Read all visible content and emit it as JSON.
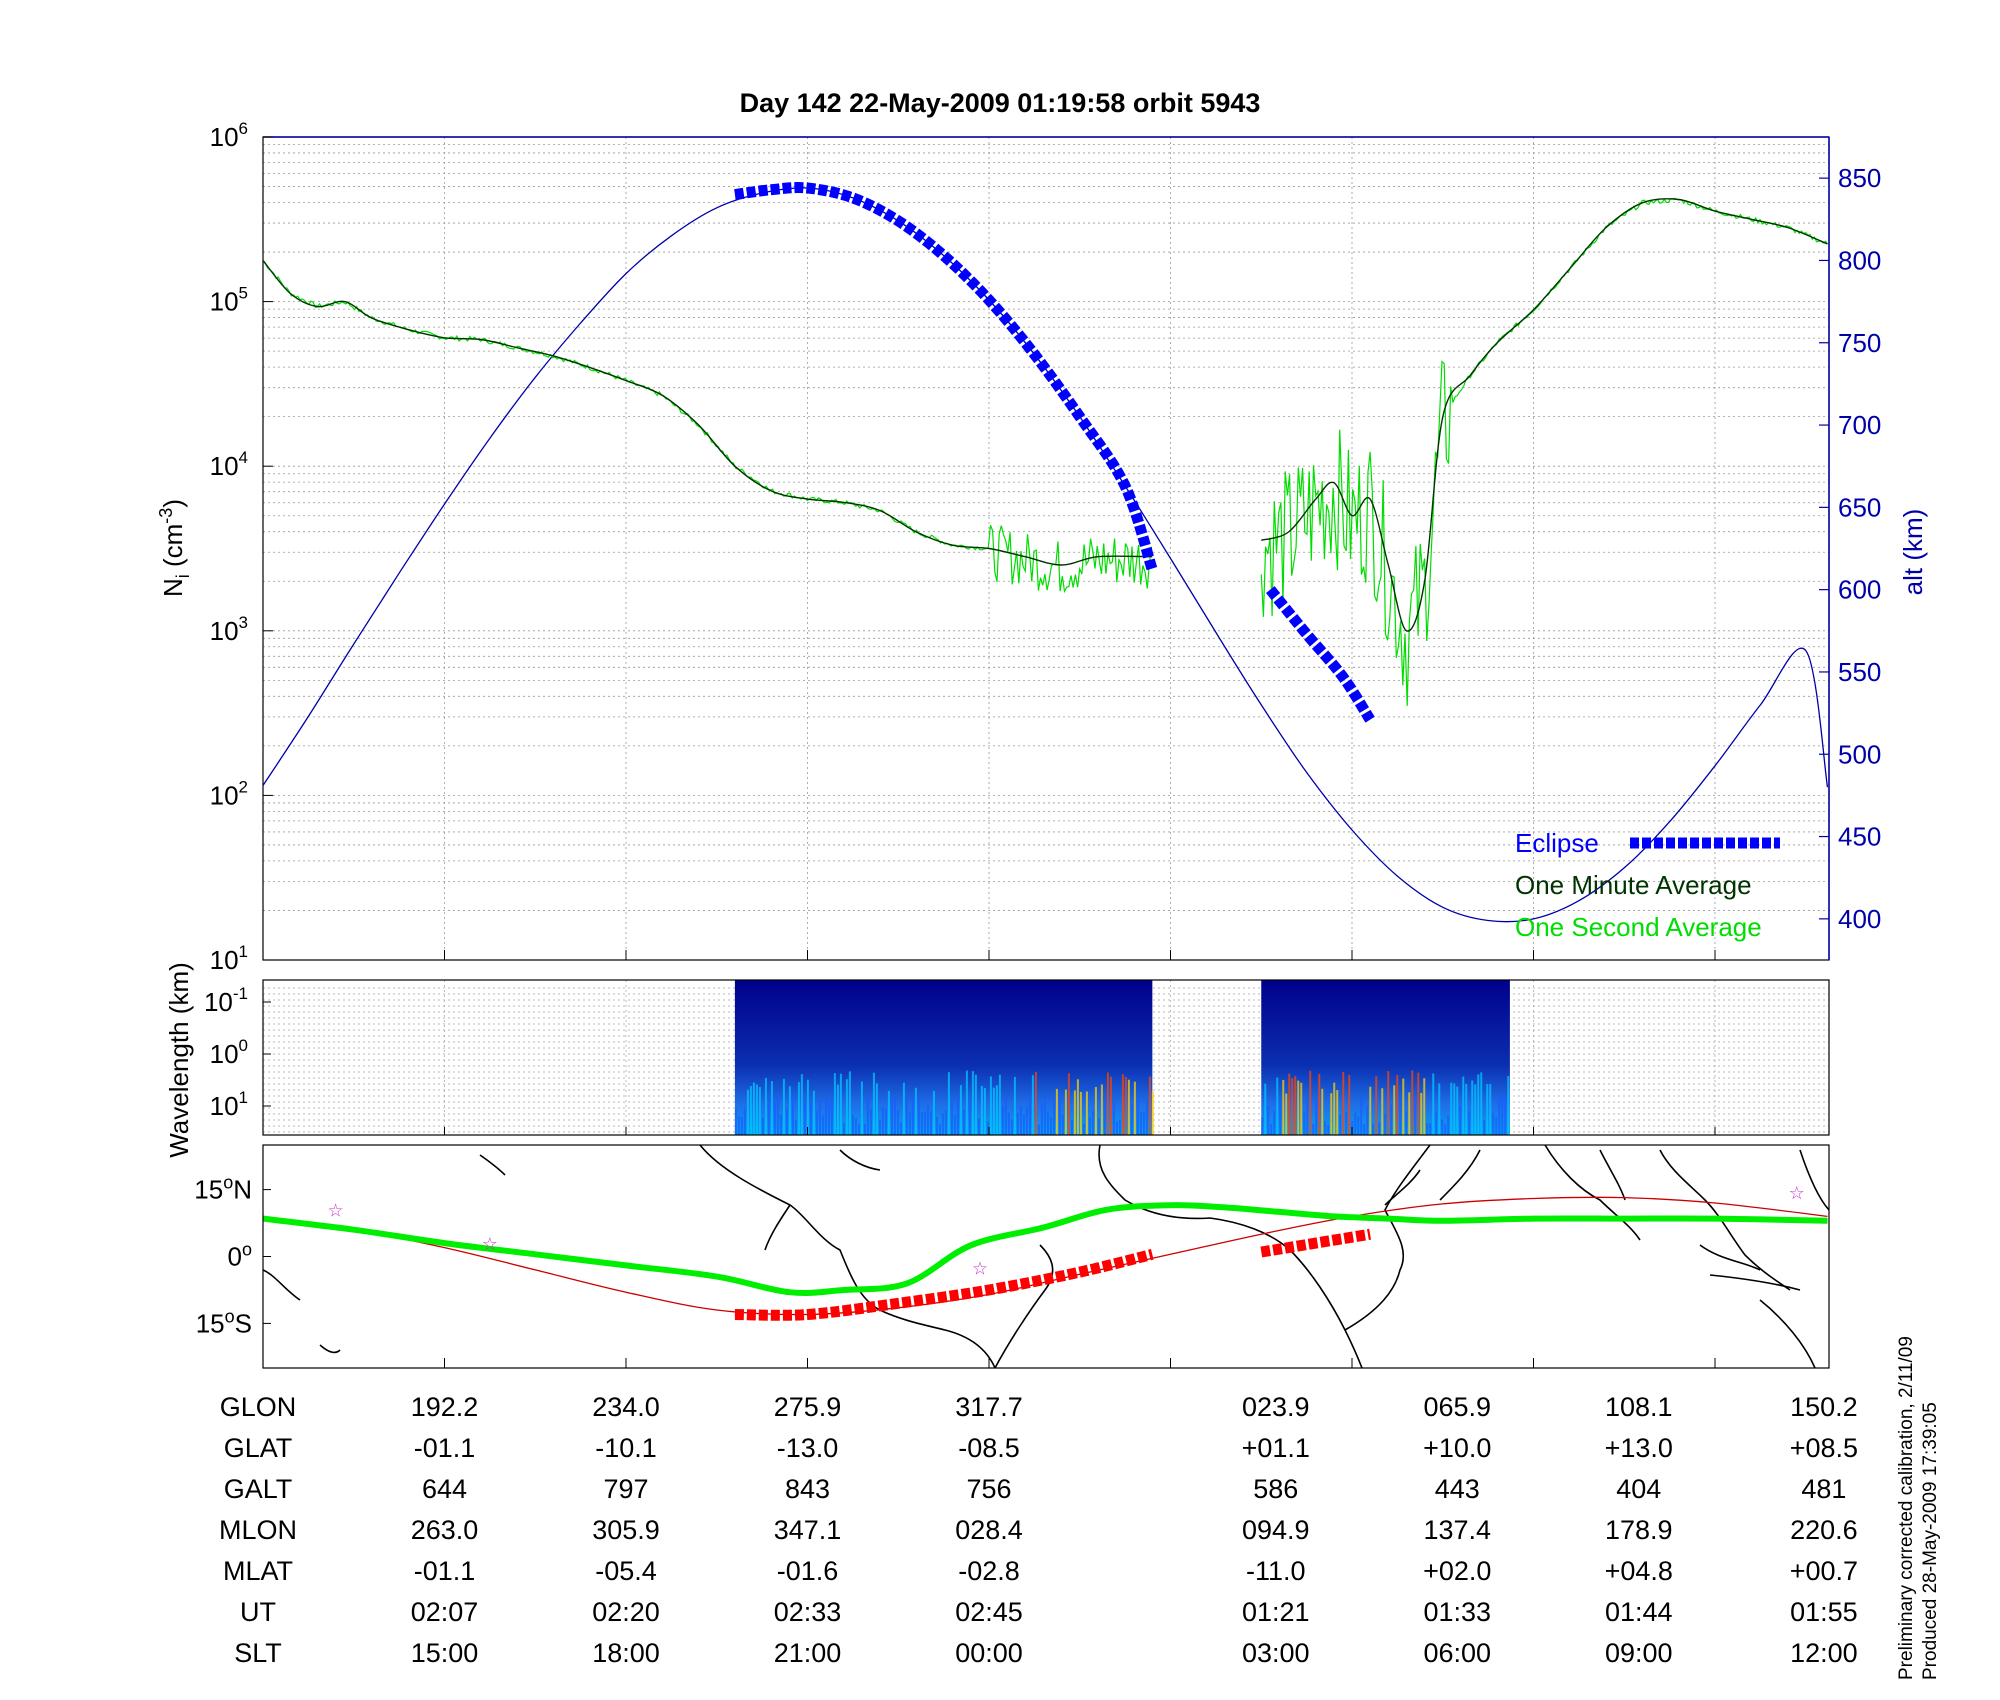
{
  "figure": {
    "title": "Day 142  22-May-2009 01:19:58   orbit 5943",
    "side_note_1": "Preliminary corrected calibration, 2/11/09",
    "side_note_2": "Produced 28-May-2009 17:39:05",
    "colors": {
      "altitude": "#0000aa",
      "eclipse": "#0000ff",
      "minute_average": "#003300",
      "second_average": "#00dd00",
      "track": "#00ee00",
      "track_eclipse": "#ff0000",
      "track_reference": "#cc0000",
      "stars": "#cc33cc",
      "spectrogram_background": "#00008b"
    }
  },
  "chart_data": [
    {
      "type": "line",
      "panel": "ion density and altitude",
      "ylabel_left": {
        "base": "N",
        "sub": "i",
        "unit_open": " (cm",
        "unit_sup": "-3",
        "unit_close": ")"
      },
      "ylabel_right": "alt (km)",
      "ylim_left_log10": [
        1,
        6
      ],
      "yticks_left": [
        {
          "base": "10",
          "exp": "1"
        },
        {
          "base": "10",
          "exp": "2"
        },
        {
          "base": "10",
          "exp": "3"
        },
        {
          "base": "10",
          "exp": "4"
        },
        {
          "base": "10",
          "exp": "5"
        },
        {
          "base": "10",
          "exp": "6"
        }
      ],
      "ylim_right": [
        375,
        875
      ],
      "yticks_right": [
        "400",
        "450",
        "500",
        "550",
        "600",
        "650",
        "700",
        "750",
        "800",
        "850"
      ],
      "grid": true,
      "x_scale": "orbit track (8 labeled columns, values in table below)",
      "legend_position": "bottom-right",
      "legend": [
        {
          "label": "Eclipse",
          "color_key": "eclipse"
        },
        {
          "label": "One Minute Average",
          "color_key": "minute_average"
        },
        {
          "label": "One Second Average",
          "color_key": "second_average"
        }
      ],
      "series": [
        {
          "name": "alt (km)",
          "axis": "right",
          "x": [
            0,
            0.25,
            0.5,
            0.75,
            1.0,
            1.25,
            1.5,
            1.75,
            2.0,
            2.25,
            2.5,
            2.75,
            3.0,
            3.25,
            3.5,
            3.75,
            4.0,
            4.25,
            4.5,
            4.75,
            5.0,
            5.25,
            5.5,
            5.75,
            6.0,
            6.25,
            6.5,
            6.75,
            7.0,
            7.25,
            7.5,
            7.75,
            8.0,
            8.25,
            8.5,
            8.62
          ],
          "y": [
            481,
            523,
            567,
            610,
            652,
            692,
            729,
            762,
            792,
            815,
            832,
            841,
            844,
            838,
            824,
            803,
            776,
            743,
            705,
            663,
            619,
            574,
            530,
            489,
            454,
            426,
            407,
            399,
            400,
            411,
            431,
            459,
            493,
            530,
            563,
            481
          ]
        },
        {
          "name": "Eclipse",
          "axis": "right",
          "segments": [
            {
              "x": [
                2.6,
                2.8,
                3.0,
                3.25,
                3.5,
                3.75,
                4.0,
                4.25,
                4.5,
                4.75,
                4.9
              ],
              "y": [
                840,
                843,
                844,
                838,
                824,
                803,
                776,
                743,
                705,
                663,
                612
              ]
            },
            {
              "x": [
                5.55,
                5.75,
                5.95,
                6.1
              ],
              "y": [
                600,
                573,
                547,
                521
              ]
            }
          ]
        },
        {
          "name": "One Minute Average",
          "axis": "left",
          "log10": true,
          "segments": [
            {
              "x": [
                0,
                0.15,
                0.3,
                0.45,
                0.6,
                0.8,
                1.0,
                1.2,
                1.4,
                1.6,
                1.8,
                2.0,
                2.2,
                2.4,
                2.6,
                2.8,
                3.0,
                3.2,
                3.4,
                3.6,
                3.8,
                4.0,
                4.2,
                4.4,
                4.6,
                4.9
              ],
              "y": [
                5.25,
                5.05,
                4.97,
                5.0,
                4.9,
                4.83,
                4.78,
                4.77,
                4.72,
                4.67,
                4.6,
                4.52,
                4.43,
                4.25,
                4.0,
                3.85,
                3.8,
                3.78,
                3.73,
                3.6,
                3.52,
                3.5,
                3.45,
                3.4,
                3.45,
                3.45
              ]
            },
            {
              "x": [
                5.5,
                5.65,
                5.8,
                5.9,
                6.0,
                6.1,
                6.2,
                6.3,
                6.4,
                6.5,
                6.65,
                6.8,
                7.0,
                7.2,
                7.4,
                7.6,
                7.8,
                8.0,
                8.2,
                8.4,
                8.62
              ],
              "y": [
                3.55,
                3.6,
                3.8,
                3.9,
                3.7,
                3.8,
                3.4,
                3.0,
                3.3,
                4.3,
                4.55,
                4.75,
                4.95,
                5.2,
                5.45,
                5.6,
                5.62,
                5.55,
                5.5,
                5.45,
                5.35
              ]
            }
          ]
        },
        {
          "name": "One Second Average",
          "axis": "left",
          "log10": true,
          "noise_x_ranges": [
            [
              4.0,
              4.9
            ],
            [
              5.5,
              6.55
            ]
          ]
        }
      ]
    },
    {
      "type": "heatmap",
      "panel": "irregularity spectrogram",
      "ylabel": "Wavelength (km)",
      "yticks": [
        {
          "base": "10",
          "exp": "-1"
        },
        {
          "base": "10",
          "exp": "0"
        },
        {
          "base": "10",
          "exp": "1"
        }
      ],
      "blocks_x": [
        [
          2.6,
          4.9
        ],
        [
          5.5,
          6.87
        ]
      ]
    },
    {
      "type": "line",
      "panel": "ground track map",
      "yticks": [
        {
          "value": "15",
          "deg": "o",
          "hemi": "N"
        },
        {
          "value": "0",
          "deg": "o",
          "hemi": ""
        },
        {
          "value": "15",
          "deg": "o",
          "hemi": "S"
        }
      ],
      "ylim": [
        -25,
        25
      ],
      "series": [
        {
          "name": "track",
          "x": [
            0,
            0.5,
            1.0,
            1.5,
            2.0,
            2.5,
            2.9,
            3.2,
            3.55,
            3.9,
            4.3,
            4.65,
            5.0,
            5.3,
            5.6,
            5.9,
            6.2,
            6.5,
            7.0,
            7.5,
            8.0,
            8.62
          ],
          "y": [
            8.5,
            6.0,
            3.0,
            0.5,
            -2.0,
            -4.5,
            -8.0,
            -7.5,
            -6.0,
            2.5,
            6.5,
            10.5,
            11.5,
            11.0,
            10.0,
            9.0,
            8.5,
            8.0,
            8.5,
            8.5,
            8.5,
            8.0
          ]
        },
        {
          "name": "track (eclipse)",
          "segments": [
            {
              "x": [
                2.6,
                3.0,
                3.5,
                4.0,
                4.5,
                4.9
              ],
              "y": [
                -13.0,
                -13.0,
                -10.5,
                -7.5,
                -3.5,
                0.5
              ]
            },
            {
              "x": [
                5.5,
                5.8,
                6.1
              ],
              "y": [
                1.0,
                3.0,
                5.0
              ]
            }
          ]
        },
        {
          "name": "reference",
          "x": [
            0,
            0.5,
            1.0,
            1.5,
            2.0,
            2.5,
            3.0,
            3.5,
            4.0,
            4.5,
            5.0,
            5.5,
            6.0,
            6.5,
            7.0,
            7.5,
            8.0,
            8.62
          ],
          "y": [
            9.0,
            6.0,
            2.0,
            -3.0,
            -8.0,
            -12.0,
            -13.0,
            -11.5,
            -8.5,
            -4.0,
            0.5,
            5.0,
            9.0,
            11.8,
            13.0,
            13.2,
            12.0,
            9.0
          ]
        },
        {
          "name": "stars",
          "x": [
            0.4,
            1.25,
            3.95,
            8.45
          ],
          "y": [
            10.5,
            3.0,
            -2.5,
            14.5
          ]
        }
      ]
    }
  ],
  "table": {
    "row_labels": [
      "GLON",
      "GLAT",
      "GALT",
      "MLON",
      "MLAT",
      "UT",
      "SLT"
    ],
    "columns": [
      [
        "192.2",
        "-01.1",
        "644",
        "263.0",
        "-01.1",
        "02:07",
        "15:00"
      ],
      [
        "234.0",
        "-10.1",
        "797",
        "305.9",
        "-05.4",
        "02:20",
        "18:00"
      ],
      [
        "275.9",
        "-13.0",
        "843",
        "347.1",
        "-01.6",
        "02:33",
        "21:00"
      ],
      [
        "317.7",
        "-08.5",
        "756",
        "028.4",
        "-02.8",
        "02:45",
        "00:00"
      ],
      [
        "023.9",
        "+01.1",
        "586",
        "094.9",
        "-11.0",
        "01:21",
        "03:00"
      ],
      [
        "065.9",
        "+10.0",
        "443",
        "137.4",
        "+02.0",
        "01:33",
        "06:00"
      ],
      [
        "108.1",
        "+13.0",
        "404",
        "178.9",
        "+04.8",
        "01:44",
        "09:00"
      ],
      [
        "150.2",
        "+08.5",
        "481",
        "220.6",
        "+00.7",
        "01:55",
        "12:00"
      ]
    ],
    "column_x": [
      1,
      2,
      3,
      4,
      5.58,
      6.58,
      7.58,
      8.6
    ]
  }
}
